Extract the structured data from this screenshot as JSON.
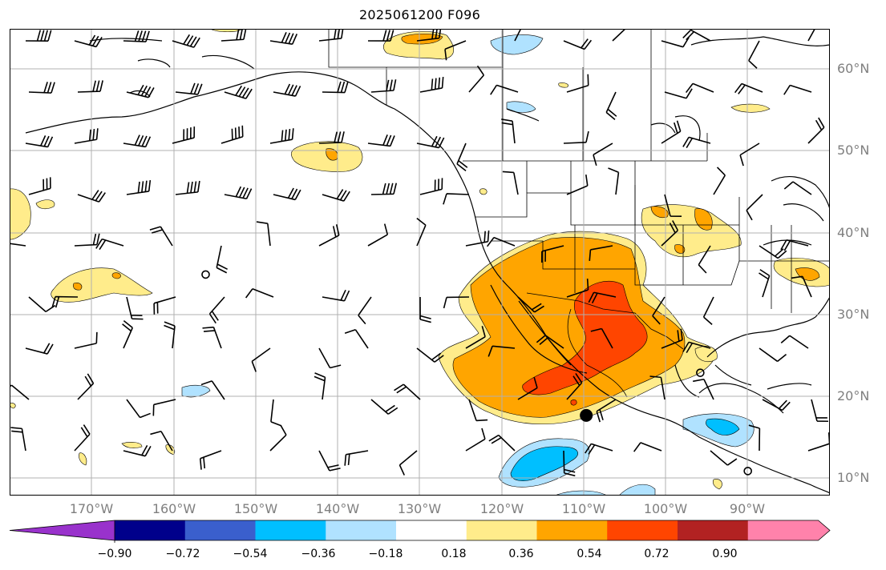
{
  "title": "2025061200 F096",
  "map": {
    "lat_labels": [
      "60°N",
      "50°N",
      "40°N",
      "30°N",
      "20°N",
      "10°N"
    ],
    "lon_labels": [
      "170°W",
      "160°W",
      "150°W",
      "140°W",
      "130°W",
      "120°W",
      "110°W",
      "100°W",
      "90°W"
    ],
    "markers": [
      {
        "name": "storm-center-marker",
        "lon": -109.7,
        "lat": 17.8
      },
      {
        "name": "open-circle-marker-1",
        "lon": -156.1,
        "lat": 35.0
      },
      {
        "name": "open-circle-marker-2",
        "lon": -95.8,
        "lat": 23.0
      },
      {
        "name": "open-circle-marker-3",
        "lon": -90.0,
        "lat": 11.0
      }
    ]
  },
  "colorbar": {
    "tick_labels": [
      "−0.90",
      "−0.72",
      "−0.54",
      "−0.36",
      "−0.18",
      "0.18",
      "0.36",
      "0.54",
      "0.72",
      "0.90"
    ],
    "colors": [
      "#9932cc",
      "#00008b",
      "#3a5fcd",
      "#00bfff",
      "#b0e2ff",
      "#ffffff",
      "#ffec8b",
      "#ffa500",
      "#ff4500",
      "#b22222",
      "#ff82ab"
    ]
  }
}
